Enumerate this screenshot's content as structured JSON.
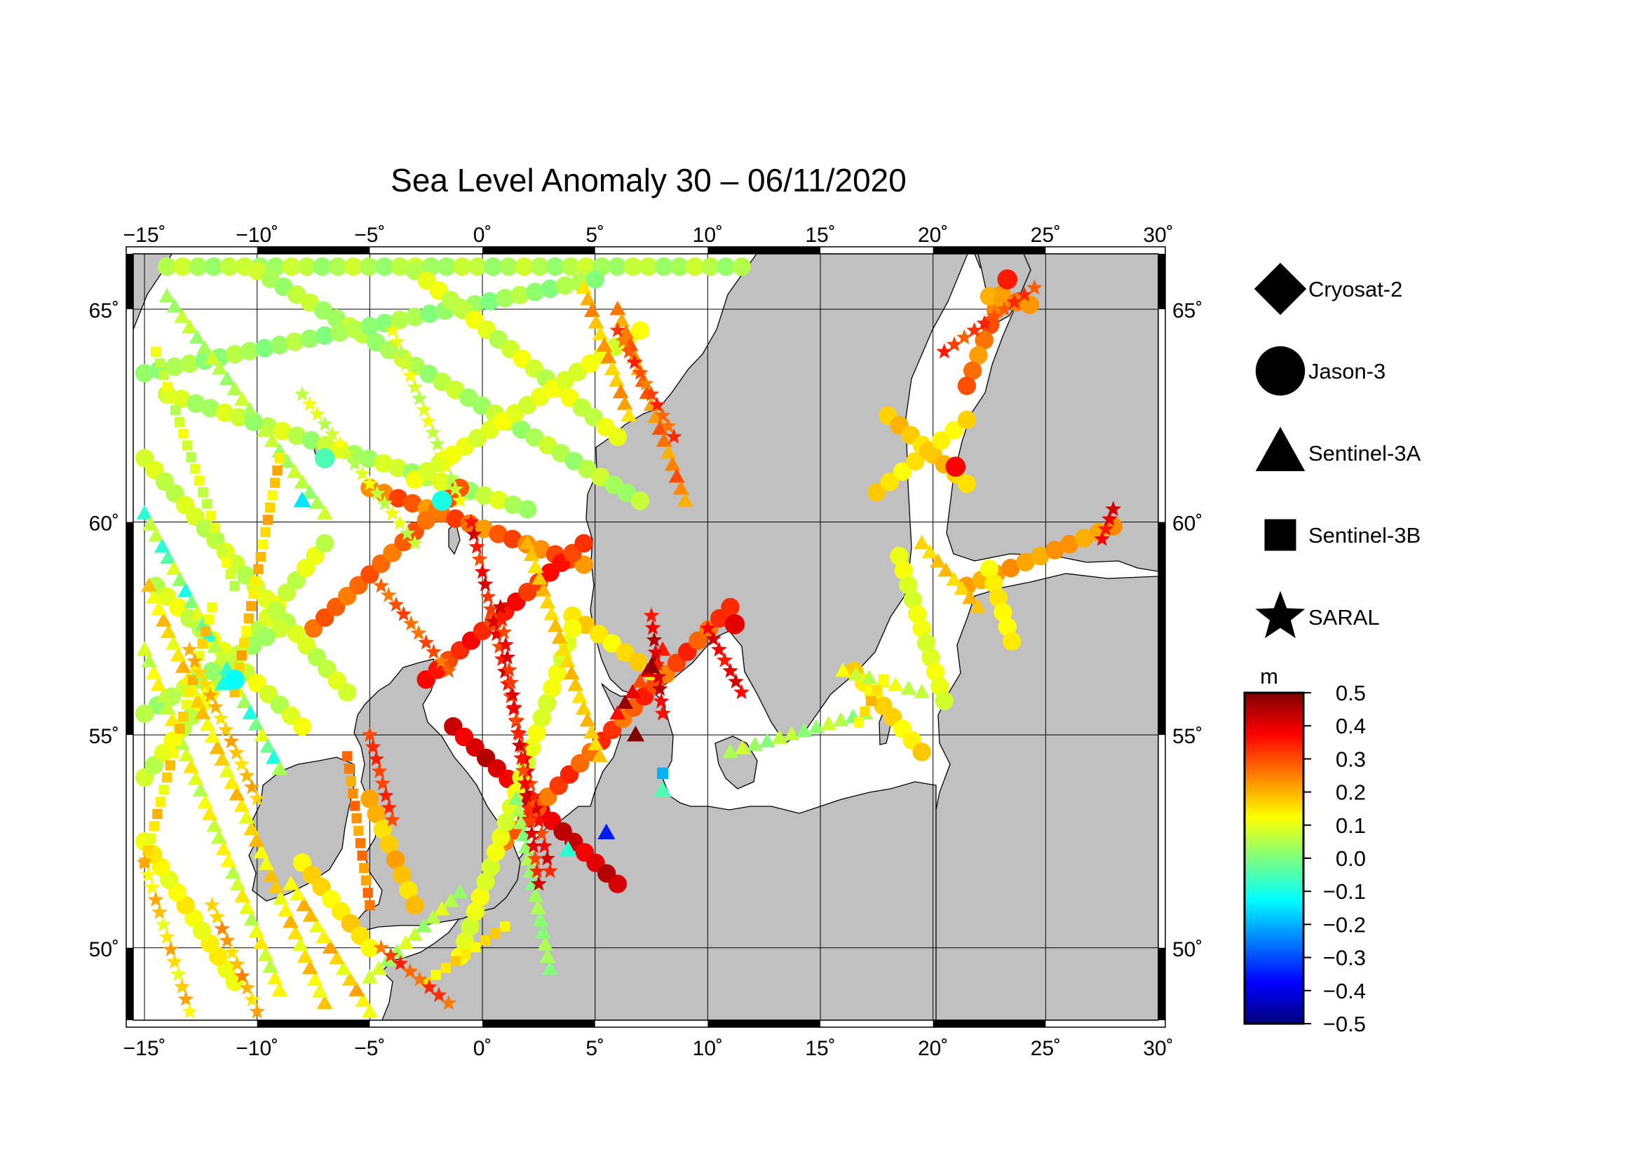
{
  "title": "Sea Level Anomaly 30 – 06/11/2020",
  "map": {
    "lon_range": [
      -15.5,
      30
    ],
    "lat_range": [
      48.3,
      66.3
    ],
    "lon_ticks": [
      -15,
      -10,
      -5,
      0,
      5,
      10,
      15,
      20,
      25,
      30
    ],
    "lat_ticks": [
      50,
      55,
      60,
      65
    ],
    "lon_tick_labels": [
      "−15˚",
      "−10˚",
      "−5˚",
      "0˚",
      "5˚",
      "10˚",
      "15˚",
      "20˚",
      "25˚",
      "30˚"
    ],
    "lat_tick_labels": [
      "50˚",
      "55˚",
      "60˚",
      "65˚"
    ],
    "land_color": "#c0c0c0",
    "sea_color": "#ffffff",
    "grid": true
  },
  "legend": {
    "items": [
      {
        "label": "Cryosat-2",
        "marker": "diamond"
      },
      {
        "label": "Jason-3",
        "marker": "circle"
      },
      {
        "label": "Sentinel-3A",
        "marker": "triangle"
      },
      {
        "label": "Sentinel-3B",
        "marker": "square"
      },
      {
        "label": "SARAL",
        "marker": "star"
      }
    ]
  },
  "colorbar": {
    "unit": "m",
    "min": -0.5,
    "max": 0.5,
    "tick_labels": [
      "0.5",
      "0.4",
      "0.3",
      "0.2",
      "0.1",
      "0.0",
      "−0.1",
      "−0.2",
      "−0.3",
      "−0.4",
      "−0.5"
    ],
    "colormap": [
      "#00007f",
      "#0000ff",
      "#007fff",
      "#00ffff",
      "#7fff7f",
      "#ffff00",
      "#ff7f00",
      "#ff0000",
      "#7f0000"
    ]
  },
  "chart_data": {
    "type": "scatter",
    "value_unit": "m",
    "tracks": [
      {
        "marker": "circle",
        "start": [
          -14,
          66.0
        ],
        "end": [
          11.5,
          66.0
        ],
        "values": [
          0.02,
          0.08
        ]
      },
      {
        "marker": "circle",
        "start": [
          -10,
          65.9
        ],
        "end": [
          7,
          60.5
        ],
        "values": [
          0.02,
          0.08
        ]
      },
      {
        "marker": "circle",
        "start": [
          -15,
          63.5
        ],
        "end": [
          5,
          65.7
        ],
        "values": [
          0.0,
          0.06
        ]
      },
      {
        "marker": "circle",
        "start": [
          -3,
          65.9
        ],
        "end": [
          6,
          62.0
        ],
        "values": [
          0.05,
          0.12
        ]
      },
      {
        "marker": "circle",
        "start": [
          -14,
          63.0
        ],
        "end": [
          2,
          60.3
        ],
        "values": [
          0.02,
          0.1
        ]
      },
      {
        "marker": "circle",
        "start": [
          -3,
          61.0
        ],
        "end": [
          7,
          64.5
        ],
        "values": [
          0.08,
          0.12
        ]
      },
      {
        "marker": "circle",
        "start": [
          -5,
          60.8
        ],
        "end": [
          4.5,
          59.0
        ],
        "values": [
          0.22,
          0.32
        ]
      },
      {
        "marker": "circle",
        "start": [
          -7.5,
          57.5
        ],
        "end": [
          -1,
          60.8
        ],
        "values": [
          0.25,
          0.3
        ]
      },
      {
        "marker": "circle",
        "start": [
          -2.5,
          56.3
        ],
        "end": [
          4.5,
          59.5
        ],
        "values": [
          0.3,
          0.38
        ]
      },
      {
        "marker": "circle",
        "start": [
          -1.3,
          55.2
        ],
        "end": [
          6,
          51.5
        ],
        "values": [
          0.38,
          0.45
        ]
      },
      {
        "marker": "circle",
        "start": [
          1,
          52.5
        ],
        "end": [
          11,
          58.0
        ],
        "values": [
          0.25,
          0.35
        ]
      },
      {
        "marker": "circle",
        "start": [
          4,
          57.8
        ],
        "end": [
          7.5,
          56.5
        ],
        "values": [
          0.12,
          0.18
        ]
      },
      {
        "marker": "circle",
        "start": [
          -1,
          49.8
        ],
        "end": [
          4,
          57.5
        ],
        "values": [
          0.08,
          0.12
        ]
      },
      {
        "marker": "circle",
        "start": [
          -15,
          54.0
        ],
        "end": [
          -7,
          59.5
        ],
        "values": [
          0.05,
          0.12
        ]
      },
      {
        "marker": "circle",
        "start": [
          -14.5,
          58.5
        ],
        "end": [
          -8,
          55.2
        ],
        "values": [
          0.05,
          0.12
        ]
      },
      {
        "marker": "circle",
        "start": [
          -15,
          61.5
        ],
        "end": [
          -6,
          56.0
        ],
        "values": [
          0.05,
          0.1
        ]
      },
      {
        "marker": "circle",
        "start": [
          -9,
          57.5
        ],
        "end": [
          -15,
          55.5
        ],
        "values": [
          0.02,
          0.08
        ]
      },
      {
        "marker": "circle",
        "start": [
          -11,
          49.2
        ],
        "end": [
          -15,
          52.5
        ],
        "values": [
          0.1,
          0.15
        ]
      },
      {
        "marker": "circle",
        "start": [
          -8,
          52.0
        ],
        "end": [
          -5,
          50.0
        ],
        "values": [
          0.12,
          0.18
        ]
      },
      {
        "marker": "circle",
        "start": [
          -5,
          53.5
        ],
        "end": [
          -3,
          51.0
        ],
        "values": [
          0.15,
          0.22
        ]
      },
      {
        "marker": "circle",
        "start": [
          23.3,
          65.7
        ],
        "end": [
          21.5,
          63.2
        ],
        "values": [
          0.22,
          0.3
        ]
      },
      {
        "marker": "circle",
        "start": [
          22.5,
          65.3
        ],
        "end": [
          24.3,
          65.1
        ],
        "values": [
          0.2,
          0.25
        ]
      },
      {
        "marker": "circle",
        "start": [
          18.0,
          62.5
        ],
        "end": [
          21.5,
          60.9
        ],
        "values": [
          0.15,
          0.2
        ]
      },
      {
        "marker": "circle",
        "start": [
          17.5,
          60.7
        ],
        "end": [
          21.5,
          62.4
        ],
        "values": [
          0.12,
          0.18
        ]
      },
      {
        "marker": "circle",
        "start": [
          21.5,
          58.5
        ],
        "end": [
          28,
          59.9
        ],
        "values": [
          0.2,
          0.24
        ]
      },
      {
        "marker": "circle",
        "start": [
          22.5,
          58.9
        ],
        "end": [
          23.5,
          57.2
        ],
        "values": [
          0.12,
          0.15
        ]
      },
      {
        "marker": "circle",
        "start": [
          18.5,
          59.2
        ],
        "end": [
          20.5,
          55.8
        ],
        "values": [
          0.08,
          0.12
        ]
      },
      {
        "marker": "circle",
        "start": [
          16.5,
          56.5
        ],
        "end": [
          19.5,
          54.6
        ],
        "values": [
          0.12,
          0.18
        ]
      },
      {
        "marker": "triangle",
        "start": [
          -14,
          65.3
        ],
        "end": [
          -7,
          60.2
        ],
        "values": [
          0.02,
          0.08
        ]
      },
      {
        "marker": "triangle",
        "start": [
          -15,
          60.2
        ],
        "end": [
          -9,
          54.2
        ],
        "values": [
          -0.1,
          0.1
        ]
      },
      {
        "marker": "triangle",
        "start": [
          -9,
          49.0
        ],
        "end": [
          -15,
          57.0
        ],
        "values": [
          0.05,
          0.15
        ]
      },
      {
        "marker": "triangle",
        "start": [
          -7,
          48.7
        ],
        "end": [
          -14.8,
          58.5
        ],
        "values": [
          0.1,
          0.2
        ]
      },
      {
        "marker": "triangle",
        "start": [
          -5,
          48.5
        ],
        "end": [
          -8.5,
          51.5
        ],
        "values": [
          0.1,
          0.22
        ]
      },
      {
        "marker": "triangle",
        "start": [
          8,
          57.0
        ],
        "end": [
          6.0,
          55.5
        ],
        "values": [
          0.3,
          0.48
        ]
      },
      {
        "marker": "triangle",
        "start": [
          2,
          59.5
        ],
        "end": [
          5.2,
          54.5
        ],
        "values": [
          0.15,
          0.2
        ]
      },
      {
        "marker": "triangle",
        "start": [
          6,
          65.0
        ],
        "end": [
          9,
          60.5
        ],
        "values": [
          0.2,
          0.3
        ]
      },
      {
        "marker": "triangle",
        "start": [
          4.5,
          65.5
        ],
        "end": [
          6.5,
          62.5
        ],
        "values": [
          0.15,
          0.25
        ]
      },
      {
        "marker": "triangle",
        "start": [
          11,
          54.6
        ],
        "end": [
          17,
          55.5
        ],
        "values": [
          0.0,
          0.08
        ]
      },
      {
        "marker": "triangle",
        "start": [
          16.0,
          56.5
        ],
        "end": [
          19.5,
          56.0
        ],
        "values": [
          0.05,
          0.12
        ]
      },
      {
        "marker": "triangle",
        "start": [
          19.5,
          59.5
        ],
        "end": [
          22,
          58.0
        ],
        "values": [
          0.15,
          0.2
        ]
      },
      {
        "marker": "triangle",
        "start": [
          3,
          49.5
        ],
        "end": [
          1.5,
          53.5
        ],
        "values": [
          0.0,
          0.05
        ]
      },
      {
        "marker": "triangle",
        "start": [
          -5,
          49.3
        ],
        "end": [
          -1,
          51.3
        ],
        "values": [
          0.02,
          0.1
        ]
      },
      {
        "marker": "square",
        "start": [
          -14.5,
          64.0
        ],
        "end": [
          -11,
          58.5
        ],
        "values": [
          0.05,
          0.12
        ]
      },
      {
        "marker": "square",
        "start": [
          -12,
          58.0
        ],
        "end": [
          -15,
          52.0
        ],
        "values": [
          0.1,
          0.2
        ]
      },
      {
        "marker": "square",
        "start": [
          -9,
          61.5
        ],
        "end": [
          -11,
          56.0
        ],
        "values": [
          0.12,
          0.22
        ]
      },
      {
        "marker": "square",
        "start": [
          -6,
          54.5
        ],
        "end": [
          -5,
          51.0
        ],
        "values": [
          0.2,
          0.28
        ]
      },
      {
        "marker": "square",
        "start": [
          -2.5,
          49.2
        ],
        "end": [
          1.0,
          50.5
        ],
        "values": [
          0.12,
          0.18
        ]
      },
      {
        "marker": "square",
        "start": [
          16.7,
          55.3
        ],
        "end": [
          17.8,
          56.3
        ],
        "values": [
          0.12,
          0.2
        ]
      },
      {
        "marker": "star",
        "start": [
          -0.5,
          60.0
        ],
        "end": [
          3.0,
          51.8
        ],
        "values": [
          0.3,
          0.42
        ]
      },
      {
        "marker": "star",
        "start": [
          0.8,
          58.0
        ],
        "end": [
          2.5,
          51.5
        ],
        "values": [
          0.3,
          0.42
        ]
      },
      {
        "marker": "star",
        "start": [
          -4.5,
          58.5
        ],
        "end": [
          -1.5,
          56.5
        ],
        "values": [
          0.25,
          0.32
        ]
      },
      {
        "marker": "star",
        "start": [
          -5,
          55.0
        ],
        "end": [
          -4,
          53.0
        ],
        "values": [
          0.3,
          0.35
        ]
      },
      {
        "marker": "star",
        "start": [
          -13,
          57.0
        ],
        "end": [
          -10,
          53.5
        ],
        "values": [
          0.15,
          0.22
        ]
      },
      {
        "marker": "star",
        "start": [
          -15,
          52.0
        ],
        "end": [
          -13,
          48.5
        ],
        "values": [
          0.1,
          0.22
        ]
      },
      {
        "marker": "star",
        "start": [
          -12,
          51.0
        ],
        "end": [
          -10,
          48.5
        ],
        "values": [
          0.15,
          0.25
        ]
      },
      {
        "marker": "star",
        "start": [
          -8,
          63.0
        ],
        "end": [
          -3,
          59.5
        ],
        "values": [
          0.05,
          0.12
        ]
      },
      {
        "marker": "star",
        "start": [
          -4,
          64.5
        ],
        "end": [
          -1,
          60.5
        ],
        "values": [
          0.05,
          0.12
        ]
      },
      {
        "marker": "star",
        "start": [
          6,
          64.5
        ],
        "end": [
          8.5,
          62.0
        ],
        "values": [
          0.25,
          0.35
        ]
      },
      {
        "marker": "star",
        "start": [
          7.5,
          57.8
        ],
        "end": [
          8,
          55.5
        ],
        "values": [
          0.35,
          0.45
        ]
      },
      {
        "marker": "star",
        "start": [
          10.0,
          57.5
        ],
        "end": [
          11.5,
          56.0
        ],
        "values": [
          0.35,
          0.42
        ]
      },
      {
        "marker": "star",
        "start": [
          20.5,
          64.0
        ],
        "end": [
          24.5,
          65.5
        ],
        "values": [
          0.28,
          0.35
        ]
      },
      {
        "marker": "star",
        "start": [
          27.5,
          59.6
        ],
        "end": [
          28.0,
          60.3
        ],
        "values": [
          0.35,
          0.42
        ]
      },
      {
        "marker": "star",
        "start": [
          -4.5,
          50.0
        ],
        "end": [
          -1.5,
          48.7
        ],
        "values": [
          0.25,
          0.35
        ]
      }
    ],
    "points": [
      {
        "marker": "square",
        "lon": 8.0,
        "lat": 54.1,
        "value": -0.2
      },
      {
        "marker": "triangle",
        "lon": 5.5,
        "lat": 52.7,
        "value": -0.35
      },
      {
        "marker": "circle",
        "lon": -1.8,
        "lat": 60.5,
        "value": -0.1
      },
      {
        "marker": "circle",
        "lon": -7.0,
        "lat": 61.5,
        "value": -0.05
      },
      {
        "marker": "triangle",
        "lon": 7.5,
        "lat": 56.6,
        "value": 0.48
      },
      {
        "marker": "triangle",
        "lon": 6.8,
        "lat": 55.0,
        "value": 0.5
      },
      {
        "marker": "circle",
        "lon": 23.3,
        "lat": 65.7,
        "value": 0.35
      },
      {
        "marker": "circle",
        "lon": 21.0,
        "lat": 61.3,
        "value": 0.38
      },
      {
        "marker": "circle",
        "lon": 11.2,
        "lat": 57.6,
        "value": 0.4
      },
      {
        "marker": "triangle",
        "lon": -11.5,
        "lat": 56.2,
        "value": -0.1
      },
      {
        "marker": "circle",
        "lon": -11.0,
        "lat": 56.3,
        "value": -0.12
      },
      {
        "marker": "triangle",
        "lon": -8.0,
        "lat": 60.5,
        "value": -0.15
      },
      {
        "marker": "triangle",
        "lon": 3.8,
        "lat": 52.3,
        "value": -0.08
      },
      {
        "marker": "triangle",
        "lon": 8.0,
        "lat": 53.7,
        "value": -0.05
      }
    ]
  }
}
